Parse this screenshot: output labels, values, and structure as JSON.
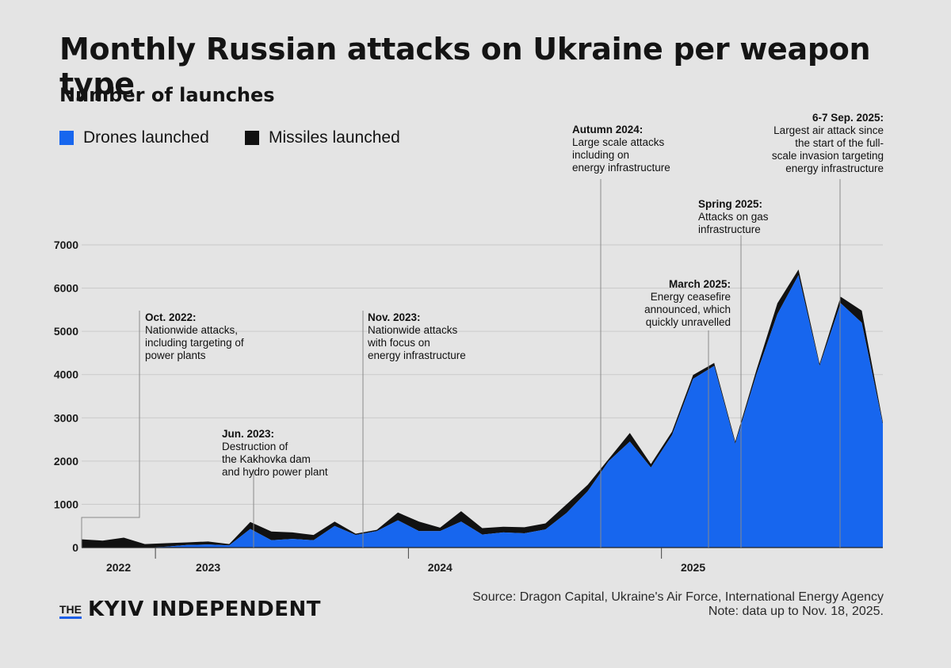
{
  "title": "Monthly Russian attacks on Ukraine per weapon type",
  "subtitle": "Number of launches",
  "legend": {
    "drones": {
      "label": "Drones launched",
      "color": "#1766ee"
    },
    "missiles": {
      "label": "Missiles launched",
      "color": "#111111"
    }
  },
  "footer": {
    "brand_the": "THE",
    "brand_name": "KYIV INDEPENDENT",
    "source": "Source: Dragon Capital, Ukraine's Air Force, International Energy Agency",
    "note": "Note: data up to Nov. 18, 2025."
  },
  "chart_data": {
    "type": "area",
    "stacked": true,
    "x": [
      "2022-09",
      "2022-10",
      "2022-11",
      "2022-12",
      "2023-01",
      "2023-02",
      "2023-03",
      "2023-04",
      "2023-05",
      "2023-06",
      "2023-07",
      "2023-08",
      "2023-09",
      "2023-10",
      "2023-11",
      "2023-12",
      "2024-01",
      "2024-02",
      "2024-03",
      "2024-04",
      "2024-05",
      "2024-06",
      "2024-07",
      "2024-08",
      "2024-09",
      "2024-10",
      "2024-11",
      "2024-12",
      "2025-01",
      "2025-02",
      "2025-03",
      "2025-04",
      "2025-05",
      "2025-06",
      "2025-07",
      "2025-08",
      "2025-09",
      "2025-10",
      "2025-11"
    ],
    "x_tick_labels": [
      "2022",
      "2023",
      "2024",
      "2025"
    ],
    "ylim": [
      0,
      7000
    ],
    "y_ticks": [
      0,
      1000,
      2000,
      3000,
      4000,
      5000,
      6000,
      7000
    ],
    "series": [
      {
        "name": "Drones launched",
        "color": "#1766ee",
        "values": [
          0,
          0,
          0,
          0,
          20,
          60,
          70,
          50,
          430,
          170,
          200,
          170,
          500,
          290,
          380,
          630,
          380,
          380,
          600,
          300,
          350,
          330,
          420,
          800,
          1300,
          2000,
          2450,
          1850,
          2600,
          3900,
          4200,
          2400,
          4000,
          5400,
          6300,
          4200,
          5650,
          5200,
          2850
        ]
      },
      {
        "name": "Missiles launched",
        "color": "#111111",
        "values": [
          190,
          160,
          230,
          80,
          80,
          60,
          70,
          30,
          160,
          200,
          150,
          120,
          100,
          30,
          30,
          180,
          220,
          80,
          240,
          150,
          130,
          140,
          140,
          200,
          150,
          50,
          200,
          80,
          80,
          90,
          70,
          50,
          100,
          250,
          130,
          50,
          150,
          280,
          50
        ]
      }
    ],
    "annotations": [
      {
        "x": "2022-10",
        "title": "Oct. 2022:",
        "text": [
          "Nationwide attacks,",
          "including targeting of",
          "power plants"
        ]
      },
      {
        "x": "2023-06",
        "title": "Jun. 2023:",
        "text": [
          "Destruction of",
          "the Kakhovka dam",
          "and hydro power plant"
        ]
      },
      {
        "x": "2023-11",
        "title": "Nov. 2023:",
        "text": [
          "Nationwide attacks",
          "with focus on",
          "energy infrastructure"
        ]
      },
      {
        "x": "2024-09",
        "title": "Autumn 2024:",
        "text": [
          "Large scale attacks",
          "including on",
          "energy infrastructure"
        ]
      },
      {
        "x": "2025-03",
        "title": "March 2025:",
        "text": [
          "Energy ceasefire",
          "announced, which",
          "quickly unravelled"
        ]
      },
      {
        "x": "2025-04",
        "title": "Spring 2025:",
        "text": [
          "Attacks on gas",
          "infrastructure"
        ]
      },
      {
        "x": "2025-09",
        "title": "6-7 Sep. 2025:",
        "text": [
          "Largest air attack since",
          "the start of the full-",
          "scale invasion targeting",
          "energy infrastructure"
        ]
      }
    ]
  }
}
